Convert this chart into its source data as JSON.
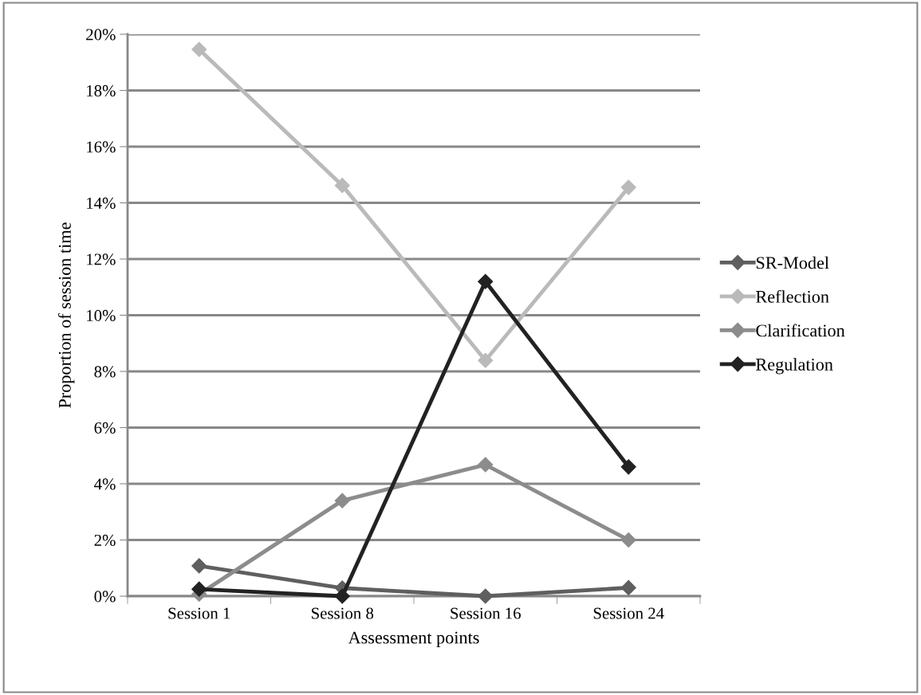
{
  "chart_data": {
    "type": "line",
    "xlabel": "Assessment points",
    "ylabel": "Proportion of session time",
    "categories": [
      "Session 1",
      "Session 8",
      "Session 16",
      "Session 24"
    ],
    "series": [
      {
        "name": "SR-Model",
        "color": "#5f5f5f",
        "values": [
          1.08,
          0.29,
          0,
          0.3
        ]
      },
      {
        "name": "Reflection",
        "color": "#bababa",
        "values": [
          19.46,
          14.62,
          8.39,
          14.55
        ]
      },
      {
        "name": "Clarification",
        "color": "#8c8c8c",
        "values": [
          0.07,
          3.4,
          4.68,
          2.0
        ]
      },
      {
        "name": "Regulation",
        "color": "#222222",
        "values": [
          0.25,
          0,
          11.2,
          4.6
        ]
      }
    ],
    "ylim": [
      0,
      20
    ],
    "yticks": [
      {
        "value": 0,
        "label": "0%"
      },
      {
        "value": 2,
        "label": "2%"
      },
      {
        "value": 4,
        "label": "4%"
      },
      {
        "value": 6,
        "label": "6%"
      },
      {
        "value": 8,
        "label": "8%"
      },
      {
        "value": 10,
        "label": "10%"
      },
      {
        "value": 12,
        "label": "12%"
      },
      {
        "value": 14,
        "label": "14%"
      },
      {
        "value": 16,
        "label": "16%"
      },
      {
        "value": 18,
        "label": "18%"
      },
      {
        "value": 20,
        "label": "20%"
      }
    ],
    "grid": "y",
    "legend": "right",
    "marker": "diamond",
    "line_style": "solid"
  }
}
